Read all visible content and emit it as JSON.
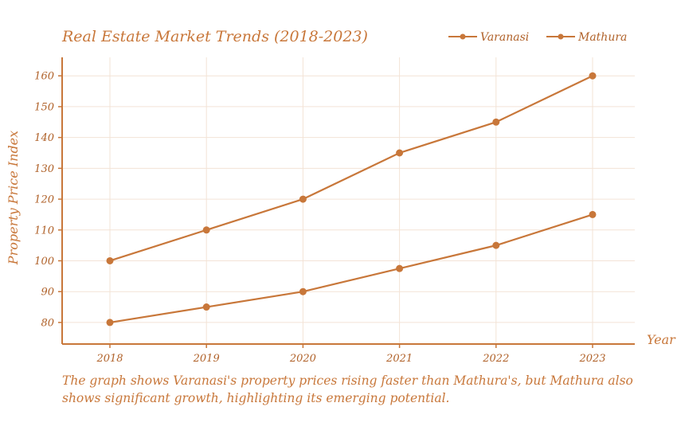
{
  "chart_data": {
    "type": "line",
    "title": "Real Estate Market Trends (2018-2023)",
    "xlabel": "Year",
    "ylabel": "Property Price Index",
    "categories": [
      "2018",
      "2019",
      "2020",
      "2021",
      "2022",
      "2023"
    ],
    "series": [
      {
        "name": "Varanasi",
        "values": [
          100,
          110,
          120,
          135,
          145,
          160
        ],
        "color": "#c8773a"
      },
      {
        "name": "Mathura",
        "values": [
          80,
          85,
          90,
          97.5,
          105,
          115
        ],
        "color": "#c8773a"
      }
    ],
    "yticks": [
      80,
      90,
      100,
      110,
      120,
      130,
      140,
      150,
      160
    ],
    "ylim": [
      73,
      166
    ],
    "grid": true,
    "legend_position": "top-right"
  },
  "caption": "The graph shows Varanasi's property prices rising faster than Mathura's, but Mathura also shows significant growth, highlighting its emerging potential."
}
